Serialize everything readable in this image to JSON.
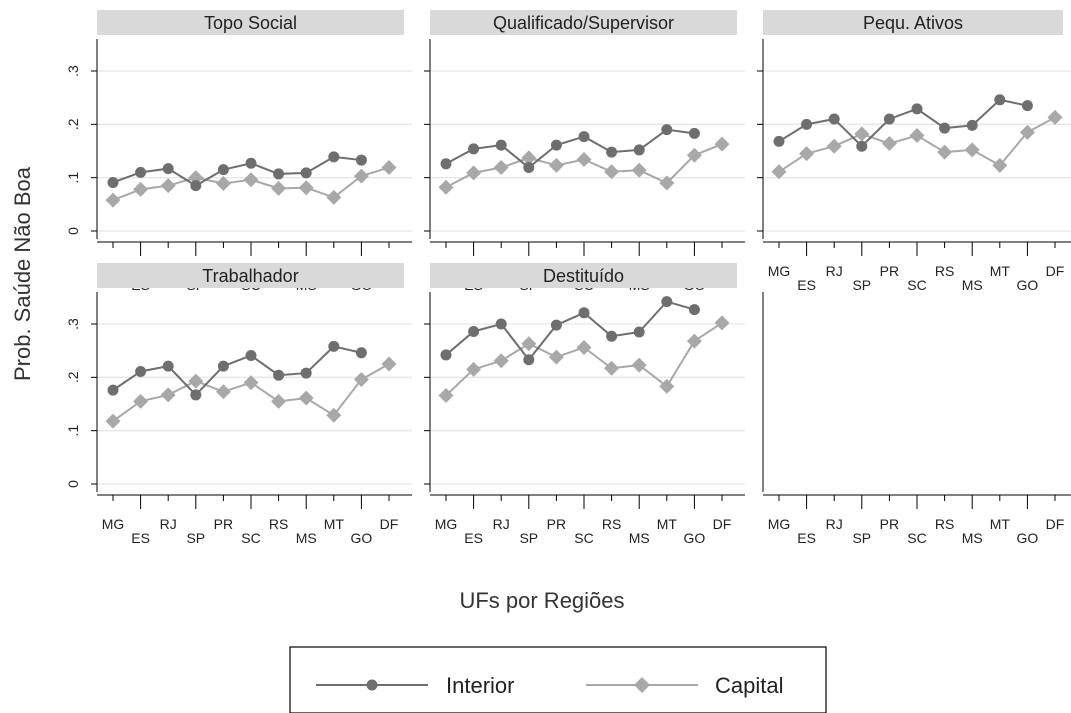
{
  "chart_data": {
    "type": "line",
    "ylabel": "Prob. Saúde Não Boa",
    "xlabel": "UFs por Regiões",
    "categories": [
      "MG",
      "ES",
      "RJ",
      "SP",
      "PR",
      "SC",
      "RS",
      "MS",
      "MT",
      "GO",
      "DF"
    ],
    "yticks": [
      0,
      0.1,
      0.2,
      0.3
    ],
    "ytick_labels": [
      "0",
      ".1",
      ".2",
      ".3"
    ],
    "ylim": [
      0,
      0.36
    ],
    "grid": true,
    "legend_position": "bottom",
    "colors": {
      "Interior": "#6e6e6e",
      "Capital": "#a8a8a8",
      "grid": "#e6e6e6",
      "title_bg": "#d9d9d9"
    },
    "series_names": [
      "Interior",
      "Capital"
    ],
    "panels": [
      {
        "title": "Topo Social",
        "series": [
          {
            "name": "Interior",
            "values": [
              0.091,
              0.11,
              0.117,
              0.085,
              0.115,
              0.127,
              0.107,
              0.109,
              0.139,
              0.133,
              null
            ]
          },
          {
            "name": "Capital",
            "values": [
              0.058,
              0.078,
              0.085,
              0.1,
              0.089,
              0.096,
              0.08,
              0.081,
              0.063,
              0.103,
              0.119
            ]
          }
        ]
      },
      {
        "title": "Qualificado/Supervisor",
        "series": [
          {
            "name": "Interior",
            "values": [
              0.126,
              0.154,
              0.161,
              0.119,
              0.161,
              0.177,
              0.148,
              0.152,
              0.19,
              0.183,
              null
            ]
          },
          {
            "name": "Capital",
            "values": [
              0.082,
              0.109,
              0.119,
              0.137,
              0.123,
              0.134,
              0.111,
              0.114,
              0.09,
              0.142,
              0.163
            ]
          }
        ]
      },
      {
        "title": "Pequ. Ativos",
        "series": [
          {
            "name": "Interior",
            "values": [
              0.168,
              0.2,
              0.21,
              0.159,
              0.21,
              0.229,
              0.193,
              0.198,
              0.246,
              0.235,
              null
            ]
          },
          {
            "name": "Capital",
            "values": [
              0.111,
              0.145,
              0.159,
              0.182,
              0.164,
              0.179,
              0.148,
              0.152,
              0.123,
              0.185,
              0.213
            ]
          }
        ]
      },
      {
        "title": "Trabalhador",
        "series": [
          {
            "name": "Interior",
            "values": [
              0.176,
              0.211,
              0.221,
              0.167,
              0.221,
              0.241,
              0.204,
              0.208,
              0.258,
              0.246,
              null
            ]
          },
          {
            "name": "Capital",
            "values": [
              0.118,
              0.155,
              0.167,
              0.193,
              0.173,
              0.19,
              0.155,
              0.161,
              0.129,
              0.196,
              0.225
            ]
          }
        ]
      },
      {
        "title": "Destituído",
        "series": [
          {
            "name": "Interior",
            "values": [
              0.242,
              0.286,
              0.3,
              0.233,
              0.298,
              0.321,
              0.277,
              0.285,
              0.342,
              0.327,
              null
            ]
          },
          {
            "name": "Capital",
            "values": [
              0.166,
              0.215,
              0.231,
              0.263,
              0.238,
              0.256,
              0.217,
              0.223,
              0.183,
              0.268,
              0.302
            ]
          }
        ]
      }
    ]
  }
}
